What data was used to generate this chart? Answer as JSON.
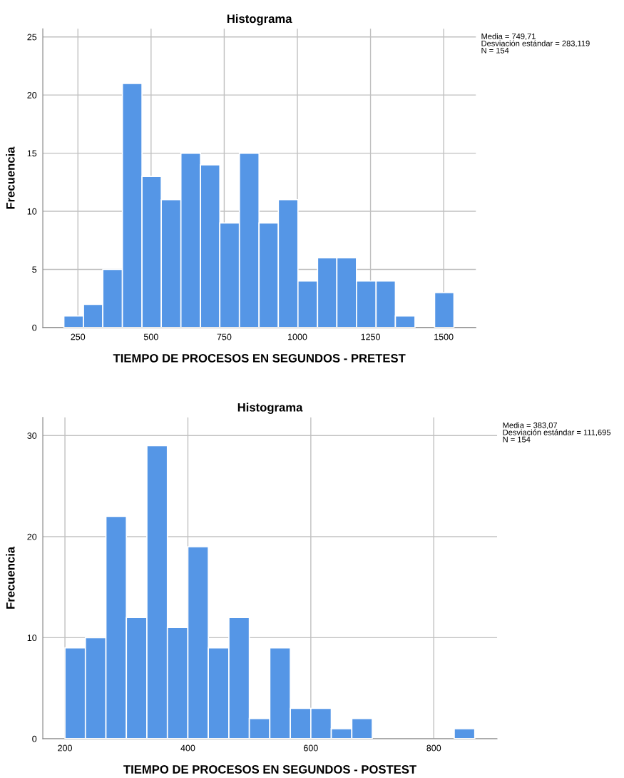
{
  "chart_data": [
    {
      "type": "histogram",
      "title": "Histograma",
      "xlabel": "TIEMPO DE PROCESOS EN SEGUNDOS - PRETEST",
      "ylabel": "Frecuencia",
      "color": "#5596e6",
      "bins": [
        202,
        269,
        335,
        402,
        469,
        535,
        602,
        669,
        735,
        802,
        869,
        935,
        1002,
        1069,
        1135,
        1202,
        1269,
        1335,
        1402,
        1469,
        1535
      ],
      "values": [
        1,
        2,
        5,
        21,
        13,
        11,
        15,
        14,
        9,
        15,
        9,
        11,
        4,
        6,
        6,
        4,
        4,
        1,
        0,
        3
      ],
      "xlim": [
        130,
        1610
      ],
      "xticks": [
        250,
        500,
        750,
        1000,
        1250,
        1500
      ],
      "ylim": [
        0,
        25.7
      ],
      "yticks": [
        0,
        5,
        10,
        15,
        20,
        25
      ],
      "grid": true,
      "annotations": [
        "Media = 749,71\nDesviación estándar = 283,119\nN = 154"
      ]
    },
    {
      "type": "histogram",
      "title": "Histograma",
      "xlabel": "TIEMPO DE PROCESOS EN SEGUNDOS - POSTEST",
      "ylabel": "Frecuencia",
      "color": "#5596e6",
      "bins": [
        200,
        233.3,
        266.7,
        300,
        333.3,
        366.7,
        400,
        433.3,
        466.7,
        500,
        533.3,
        566.7,
        600,
        633.3,
        666.7,
        700,
        733.3,
        766.7,
        800,
        833.3,
        866.7
      ],
      "values": [
        9,
        10,
        22,
        12,
        29,
        11,
        19,
        9,
        12,
        2,
        9,
        3,
        3,
        1,
        2,
        0,
        0,
        0,
        0,
        1
      ],
      "xlim": [
        164,
        903
      ],
      "xticks": [
        200,
        400,
        600,
        800
      ],
      "ylim": [
        0,
        31.8
      ],
      "yticks": [
        0,
        10,
        20,
        30
      ],
      "grid": true,
      "annotations": [
        "Media = 383,07\nDesviación estándar = 111,695\nN = 154"
      ]
    }
  ]
}
